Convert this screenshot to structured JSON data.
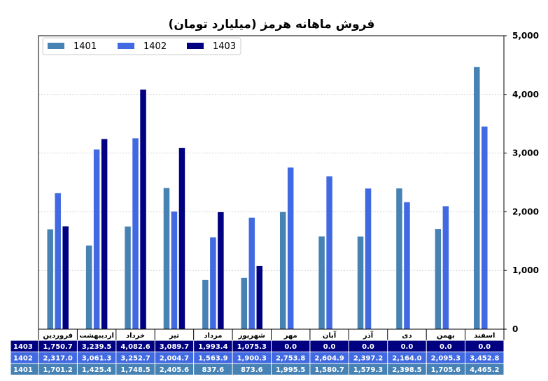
{
  "chart_data": {
    "type": "bar",
    "title": "فروش ماهانه هرمز (میلیارد تومان)",
    "categories": [
      "فروردین",
      "اردیبهشت",
      "خرداد",
      "تیر",
      "مرداد",
      "شهریور",
      "مهر",
      "آبان",
      "آذر",
      "دی",
      "بهمن",
      "اسفند"
    ],
    "series": [
      {
        "name": "1401",
        "color": "#4682b4",
        "values": [
          1701.2,
          1425.4,
          1748.5,
          2405.6,
          837.6,
          873.6,
          1995.5,
          1580.7,
          1579.3,
          2398.5,
          1705.6,
          4465.2
        ],
        "labels": [
          "1,701.2",
          "1,425.4",
          "1,748.5",
          "2,405.6",
          "837.6",
          "873.6",
          "1,995.5",
          "1,580.7",
          "1,579.3",
          "2,398.5",
          "1,705.6",
          "4,465.2"
        ]
      },
      {
        "name": "1402",
        "color": "#4169e1",
        "values": [
          2317.0,
          3061.3,
          3252.7,
          2004.7,
          1563.9,
          1900.3,
          2753.8,
          2604.9,
          2397.2,
          2164.0,
          2095.3,
          3452.8
        ],
        "labels": [
          "2,317.0",
          "3,061.3",
          "3,252.7",
          "2,004.7",
          "1,563.9",
          "1,900.3",
          "2,753.8",
          "2,604.9",
          "2,397.2",
          "2,164.0",
          "2,095.3",
          "3,452.8"
        ]
      },
      {
        "name": "1403",
        "color": "#000080",
        "values": [
          1750.7,
          3239.5,
          4082.6,
          3089.7,
          1993.4,
          1075.3,
          0.0,
          0.0,
          0.0,
          0.0,
          0.0,
          0.0
        ],
        "labels": [
          "1,750.7",
          "3,239.5",
          "4,082.6",
          "3,089.7",
          "1,993.4",
          "1,075.3",
          "0.0",
          "0.0",
          "0.0",
          "0.0",
          "0.0",
          "0.0"
        ]
      }
    ],
    "ylim": [
      0,
      5000
    ],
    "yticks": [
      0,
      1000,
      2000,
      3000,
      4000,
      5000
    ],
    "ytick_labels": [
      "0",
      "1,000",
      "2,000",
      "3,000",
      "4,000",
      "5,000"
    ],
    "y_axis_side": "right",
    "grid": true,
    "legend": "top-left",
    "table_row_order": [
      "1403",
      "1402",
      "1401"
    ]
  }
}
